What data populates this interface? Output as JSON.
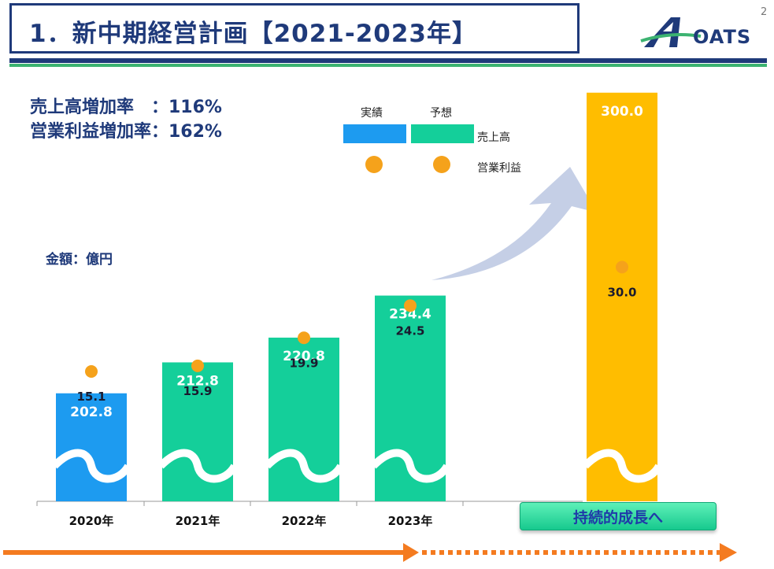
{
  "header": {
    "title": "1．新中期経営計画【2021-2023年】",
    "page_number": "2",
    "logo_text": "OATS",
    "logo_colors": {
      "a_mark": "#1f3a7a",
      "accent": "#3cb371"
    }
  },
  "summary": {
    "sales_growth": "売上高増加率　：116%",
    "profit_growth": "営業利益増加率：162%"
  },
  "unit_label": "金額：億円",
  "legend": {
    "actual_label": "実績",
    "forecast_label": "予想",
    "sales_label": "売上高",
    "profit_label": "営業利益",
    "colors": {
      "actual": "#1d9bf0",
      "forecast": "#14cf9a",
      "profit_dot": "#f5a21b"
    }
  },
  "chart_data": {
    "type": "bar",
    "title": "",
    "xlabel": "",
    "ylabel": "",
    "categories": [
      "2020年",
      "2021年",
      "2022年",
      "2023年",
      ""
    ],
    "series": [
      {
        "name": "売上高",
        "values": [
          202.8,
          212.8,
          220.8,
          234.4,
          300.0
        ],
        "labels": [
          "202.8",
          "212.8",
          "220.8",
          "234.4",
          "300.0"
        ],
        "status": [
          "実績",
          "予想",
          "予想",
          "予想",
          "target"
        ]
      },
      {
        "name": "営業利益",
        "values": [
          15.1,
          15.9,
          19.9,
          24.5,
          30.0
        ],
        "labels": [
          "15.1",
          "15.9",
          "19.9",
          "24.5",
          "30.0"
        ]
      }
    ],
    "axis_break": true,
    "bar_colors": [
      "#1d9bf0",
      "#14cf9a",
      "#14cf9a",
      "#14cf9a",
      "#ffbd00"
    ]
  },
  "growth_button_label": "持続的成長へ",
  "arrow_colors": {
    "solid": "#f47b20",
    "curved_arrow": "#c5cfe6"
  }
}
